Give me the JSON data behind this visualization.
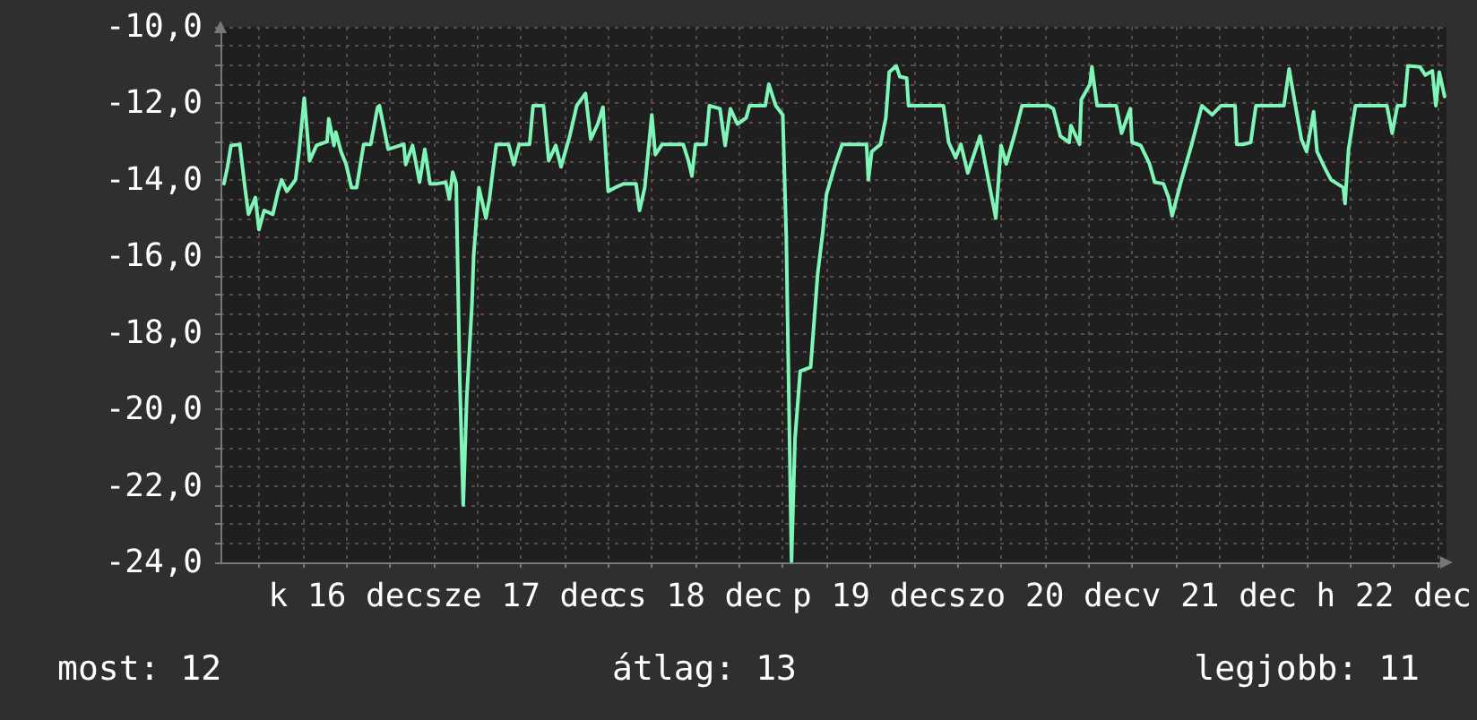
{
  "chart_data": {
    "type": "line",
    "annotations": [
      "most: 12",
      "átlag: 13",
      "legjobb: 11"
    ],
    "xlim": [
      "--12-15T18:43",
      "--12-22T19:12"
    ],
    "xticks": [
      {
        "value": "--12-16T00:00",
        "label": null
      },
      {
        "value": "--12-16T06:00",
        "label": null
      },
      {
        "value": "--12-16T12:00",
        "label": "k 16 dec"
      },
      {
        "value": "--12-16T18:00",
        "label": null
      },
      {
        "value": "--12-17T00:00",
        "label": null
      },
      {
        "value": "--12-17T06:00",
        "label": null
      },
      {
        "value": "--12-17T12:00",
        "label": "sze 17 dec"
      },
      {
        "value": "--12-17T18:00",
        "label": null
      },
      {
        "value": "--12-18T00:00",
        "label": null
      },
      {
        "value": "--12-18T06:00",
        "label": null
      },
      {
        "value": "--12-18T12:00",
        "label": "cs 18 dec"
      },
      {
        "value": "--12-18T18:00",
        "label": null
      },
      {
        "value": "--12-19T00:00",
        "label": null
      },
      {
        "value": "--12-19T06:00",
        "label": null
      },
      {
        "value": "--12-19T12:00",
        "label": "p 19 dec"
      },
      {
        "value": "--12-19T18:00",
        "label": null
      },
      {
        "value": "--12-20T00:00",
        "label": null
      },
      {
        "value": "--12-20T06:00",
        "label": null
      },
      {
        "value": "--12-20T12:00",
        "label": "szo 20 dec"
      },
      {
        "value": "--12-20T18:00",
        "label": null
      },
      {
        "value": "--12-21T00:00",
        "label": null
      },
      {
        "value": "--12-21T06:00",
        "label": null
      },
      {
        "value": "--12-21T12:00",
        "label": "v 21 dec"
      },
      {
        "value": "--12-21T18:00",
        "label": null
      },
      {
        "value": "--12-22T00:00",
        "label": null
      },
      {
        "value": "--12-22T06:00",
        "label": null
      },
      {
        "value": "--12-22T12:00",
        "label": "h 22 dec"
      },
      {
        "value": "--12-22T18:00",
        "label": null
      }
    ],
    "ylim": [
      -24,
      -10
    ],
    "yticks": [
      {
        "value": -24,
        "label": "-24,0"
      },
      {
        "value": -23.5,
        "label": null
      },
      {
        "value": -23,
        "label": null
      },
      {
        "value": -22.5,
        "label": null
      },
      {
        "value": -22,
        "label": "-22,0"
      },
      {
        "value": -21.5,
        "label": null
      },
      {
        "value": -21,
        "label": null
      },
      {
        "value": -20.5,
        "label": null
      },
      {
        "value": -20,
        "label": "-20,0"
      },
      {
        "value": -19.5,
        "label": null
      },
      {
        "value": -19,
        "label": null
      },
      {
        "value": -18.5,
        "label": null
      },
      {
        "value": -18,
        "label": "-18,0"
      },
      {
        "value": -17.5,
        "label": null
      },
      {
        "value": -17,
        "label": null
      },
      {
        "value": -16.5,
        "label": null
      },
      {
        "value": -16,
        "label": "-16,0"
      },
      {
        "value": -15.5,
        "label": null
      },
      {
        "value": -15,
        "label": null
      },
      {
        "value": -14.5,
        "label": null
      },
      {
        "value": -14,
        "label": "-14,0"
      },
      {
        "value": -13.5,
        "label": null
      },
      {
        "value": -13,
        "label": null
      },
      {
        "value": -12.5,
        "label": null
      },
      {
        "value": -12,
        "label": "-12,0"
      },
      {
        "value": -11.5,
        "label": null
      },
      {
        "value": -11,
        "label": null
      },
      {
        "value": -10.5,
        "label": null
      },
      {
        "value": -10,
        "label": "-10,0"
      }
    ],
    "grid": true,
    "marker": "none",
    "line_style": "solid",
    "series": [
      {
        "color": "#7ff5b8",
        "x": [
          "--12-15T19:12",
          "--12-15T19:41",
          "--12-15T20:10",
          "--12-15T21:22",
          "--12-15T22:05",
          "--12-15T22:34",
          "--12-15T23:31",
          "--12-16T00:00",
          "--12-16T00:43",
          "--12-16T01:55",
          "--12-16T02:38",
          "--12-16T03:07",
          "--12-16T03:50",
          "--12-16T05:02",
          "--12-16T05:31",
          "--12-16T06:14",
          "--12-16T06:58",
          "--12-16T07:55",
          "--12-16T09:22",
          "--12-16T09:36",
          "--12-16T10:19",
          "--12-16T10:34",
          "--12-16T11:17",
          "--12-16T12:00",
          "--12-16T12:43",
          "--12-16T13:26",
          "--12-16T14:24",
          "--12-16T15:22",
          "--12-16T16:19",
          "--12-16T16:34",
          "--12-16T17:46",
          "--12-16T19:55",
          "--12-16T20:10",
          "--12-16T21:07",
          "--12-16T22:05",
          "--12-16T22:48",
          "--12-16T23:31",
          "--12-17T00:29",
          "--12-17T01:41",
          "--12-17T02:10",
          "--12-17T02:38",
          "--12-17T03:07",
          "--12-17T03:36",
          "--12-17T04:05",
          "--12-17T04:34",
          "--12-17T05:17",
          "--12-17T05:31",
          "--12-17T06:14",
          "--12-17T07:12",
          "--12-17T07:41",
          "--12-17T08:10",
          "--12-17T08:38",
          "--12-17T10:19",
          "--12-17T11:02",
          "--12-17T11:46",
          "--12-17T13:12",
          "--12-17T13:41",
          "--12-17T15:07",
          "--12-17T15:50",
          "--12-17T16:48",
          "--12-17T17:31",
          "--12-17T18:43",
          "--12-17T19:41",
          "--12-17T20:53",
          "--12-17T21:36",
          "--12-17T22:34",
          "--12-17T23:17",
          "--12-18T00:00",
          "--12-18T00:58",
          "--12-18T02:10",
          "--12-18T03:50",
          "--12-18T04:19",
          "--12-18T05:02",
          "--12-18T06:00",
          "--12-18T06:29",
          "--12-18T07:26",
          "--12-18T10:19",
          "--12-18T11:02",
          "--12-18T11:31",
          "--12-18T12:00",
          "--12-18T13:26",
          "--12-18T13:55",
          "--12-18T15:22",
          "--12-18T16:05",
          "--12-18T16:48",
          "--12-18T17:46",
          "--12-18T18:58",
          "--12-18T19:26",
          "--12-18T21:36",
          "--12-18T22:05",
          "--12-18T23:02",
          "--12-19T00:00",
          "--12-19T00:29",
          "--12-19T01:12",
          "--12-19T01:41",
          "--12-19T02:24",
          "--12-19T03:50",
          "--12-19T04:48",
          "--12-19T05:31",
          "--12-19T06:00",
          "--12-19T07:12",
          "--12-19T08:10",
          "--12-19T11:31",
          "--12-19T11:46",
          "--12-19T12:14",
          "--12-19T13:26",
          "--12-19T14:10",
          "--12-19T14:38",
          "--12-19T15:36",
          "--12-19T16:05",
          "--12-19T17:02",
          "--12-19T17:17",
          "--12-19T22:05",
          "--12-19T22:48",
          "--12-19T23:46",
          "--12-20T00:29",
          "--12-20T01:26",
          "--12-20T03:07",
          "--12-20T04:19",
          "--12-20T05:17",
          "--12-20T06:00",
          "--12-20T06:43",
          "--12-20T07:55",
          "--12-20T08:53",
          "--12-20T12:29",
          "--12-20T13:12",
          "--12-20T14:10",
          "--12-20T15:22",
          "--12-20T15:36",
          "--12-20T16:48",
          "--12-20T17:02",
          "--12-20T18:14",
          "--12-20T18:29",
          "--12-20T19:12",
          "--12-20T21:50",
          "--12-20T22:34",
          "--12-20T23:46",
          "--12-21T00:00",
          "--12-21T01:12",
          "--12-21T02:24",
          "--12-21T03:07",
          "--12-21T04:19",
          "--12-21T05:02",
          "--12-21T05:31",
          "--12-21T06:43",
          "--12-21T08:10",
          "--12-21T09:36",
          "--12-21T11:02",
          "--12-21T12:14",
          "--12-21T14:10",
          "--12-21T14:24",
          "--12-21T15:22",
          "--12-21T16:19",
          "--12-21T17:02",
          "--12-21T20:53",
          "--12-21T21:36",
          "--12-21T22:19",
          "--12-21T23:17",
          "--12-22T00:00",
          "--12-22T00:58",
          "--12-22T01:26",
          "--12-22T02:38",
          "--12-22T03:22",
          "--12-22T05:02",
          "--12-22T05:17",
          "--12-22T05:46",
          "--12-22T06:43",
          "--12-22T11:02",
          "--12-22T11:46",
          "--12-22T12:29",
          "--12-22T13:26",
          "--12-22T13:55",
          "--12-22T15:36",
          "--12-22T16:19",
          "--12-22T17:17",
          "--12-22T17:46",
          "--12-22T18:14",
          "--12-22T18:58"
        ],
        "values": [
          -14.1,
          -13.66,
          -13.1,
          -13.07,
          -14.2,
          -14.9,
          -14.46,
          -15.3,
          -14.8,
          -14.9,
          -14.3,
          -14.0,
          -14.3,
          -14.0,
          -13.26,
          -11.86,
          -13.5,
          -13.1,
          -13.0,
          -12.4,
          -13.1,
          -12.75,
          -13.26,
          -13.6,
          -14.2,
          -14.2,
          -13.07,
          -13.07,
          -12.1,
          -12.06,
          -13.2,
          -13.07,
          -13.6,
          -13.1,
          -14.06,
          -13.2,
          -14.1,
          -14.1,
          -14.06,
          -14.5,
          -13.8,
          -14.1,
          -19.17,
          -22.5,
          -19.7,
          -17.25,
          -15.98,
          -14.2,
          -15.0,
          -14.5,
          -13.74,
          -13.07,
          -13.07,
          -13.6,
          -13.07,
          -13.07,
          -12.06,
          -12.06,
          -13.5,
          -13.1,
          -13.66,
          -12.86,
          -12.06,
          -11.74,
          -12.94,
          -12.54,
          -12.1,
          -14.3,
          -14.2,
          -14.1,
          -14.1,
          -14.8,
          -14.2,
          -12.3,
          -13.34,
          -13.07,
          -13.07,
          -13.5,
          -13.9,
          -13.07,
          -13.07,
          -12.06,
          -12.14,
          -13.1,
          -12.14,
          -12.54,
          -12.38,
          -12.06,
          -12.06,
          -11.5,
          -12.06,
          -12.3,
          -15.5,
          -23.97,
          -20.77,
          -19.0,
          -18.9,
          -16.46,
          -15.34,
          -14.38,
          -13.6,
          -13.07,
          -13.07,
          -14.0,
          -13.26,
          -13.07,
          -12.38,
          -11.18,
          -11.02,
          -11.3,
          -11.34,
          -12.06,
          -12.06,
          -13.02,
          -13.42,
          -13.07,
          -13.82,
          -12.86,
          -14.06,
          -15.0,
          -13.1,
          -13.58,
          -12.78,
          -12.06,
          -12.06,
          -12.14,
          -12.86,
          -13.02,
          -12.58,
          -13.07,
          -11.9,
          -11.5,
          -11.05,
          -12.06,
          -12.06,
          -12.78,
          -12.14,
          -13.02,
          -13.1,
          -13.58,
          -14.06,
          -14.1,
          -14.46,
          -14.94,
          -14.06,
          -13.1,
          -12.06,
          -12.3,
          -12.06,
          -12.06,
          -13.07,
          -13.07,
          -13.02,
          -12.06,
          -12.06,
          -11.1,
          -11.9,
          -12.94,
          -13.26,
          -12.22,
          -13.26,
          -13.74,
          -14.0,
          -14.2,
          -14.62,
          -13.2,
          -12.06,
          -12.06,
          -12.78,
          -12.06,
          -12.06,
          -11.02,
          -11.05,
          -11.26,
          -11.15,
          -12.06,
          -11.18,
          -11.82
        ]
      }
    ]
  }
}
